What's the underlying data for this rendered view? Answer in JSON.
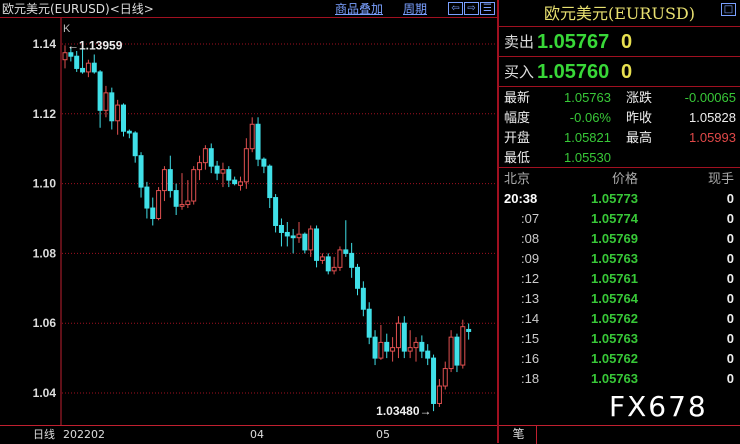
{
  "title": "欧元美元(EURUSD)<日线>",
  "toolbar": {
    "overlay": "商品叠加",
    "period": "周期",
    "icons": [
      "arrow-left-icon",
      "arrow-right-icon",
      "layout-icon"
    ]
  },
  "chart": {
    "label": "K",
    "yticks": [
      "1.14",
      "1.12",
      "1.10",
      "1.08",
      "1.06",
      "1.04"
    ],
    "yvalues": [
      1.14,
      1.12,
      1.1,
      1.08,
      1.06,
      1.04
    ],
    "high_label": "1.13959",
    "low_label": "1.03480",
    "xlabels": [
      {
        "text": "日线"
      },
      {
        "text": "202202"
      },
      {
        "text": "04"
      },
      {
        "text": "05"
      }
    ],
    "colors": {
      "up": "#e05050",
      "down": "#40e0e8",
      "grid": "#a01020"
    },
    "candles": [
      [
        1.1355,
        1.13959,
        1.133,
        1.1375
      ],
      [
        1.1375,
        1.139,
        1.135,
        1.1365
      ],
      [
        1.1365,
        1.138,
        1.132,
        1.133
      ],
      [
        1.133,
        1.1385,
        1.1315,
        1.132
      ],
      [
        1.132,
        1.1355,
        1.1305,
        1.1345
      ],
      [
        1.1345,
        1.137,
        1.1315,
        1.132
      ],
      [
        1.132,
        1.1325,
        1.116,
        1.121
      ],
      [
        1.121,
        1.128,
        1.119,
        1.126
      ],
      [
        1.126,
        1.1275,
        1.1155,
        1.118
      ],
      [
        1.118,
        1.124,
        1.114,
        1.1225
      ],
      [
        1.1225,
        1.123,
        1.1135,
        1.115
      ],
      [
        1.115,
        1.1155,
        1.113,
        1.1145
      ],
      [
        1.1145,
        1.115,
        1.106,
        1.108
      ],
      [
        1.108,
        1.109,
        1.096,
        1.099
      ],
      [
        1.099,
        1.1005,
        1.09,
        1.093
      ],
      [
        1.093,
        1.096,
        1.088,
        1.09
      ],
      [
        1.09,
        1.099,
        1.0895,
        1.098
      ],
      [
        1.098,
        1.105,
        1.095,
        1.104
      ],
      [
        1.104,
        1.108,
        1.096,
        1.098
      ],
      [
        1.098,
        1.1,
        1.091,
        1.0935
      ],
      [
        1.0935,
        1.103,
        1.0925,
        1.094
      ],
      [
        1.094,
        1.101,
        1.093,
        1.095
      ],
      [
        1.095,
        1.105,
        1.094,
        1.104
      ],
      [
        1.104,
        1.108,
        1.101,
        1.106
      ],
      [
        1.106,
        1.111,
        1.104,
        1.11
      ],
      [
        1.11,
        1.1115,
        1.103,
        1.105
      ],
      [
        1.105,
        1.1065,
        1.101,
        1.103
      ],
      [
        1.103,
        1.106,
        1.099,
        1.104
      ],
      [
        1.104,
        1.105,
        1.099,
        1.101
      ],
      [
        1.101,
        1.102,
        1.0995,
        1.1
      ],
      [
        1.0995,
        1.102,
        1.098,
        1.1005
      ],
      [
        1.1005,
        1.113,
        1.0985,
        1.11
      ],
      [
        1.11,
        1.119,
        1.109,
        1.117
      ],
      [
        1.117,
        1.119,
        1.105,
        1.107
      ],
      [
        1.107,
        1.1075,
        1.103,
        1.105
      ],
      [
        1.105,
        1.1055,
        1.093,
        1.096
      ],
      [
        1.096,
        1.097,
        1.086,
        1.088
      ],
      [
        1.088,
        1.09,
        1.082,
        1.086
      ],
      [
        1.086,
        1.089,
        1.082,
        1.085
      ],
      [
        1.085,
        1.087,
        1.08,
        1.0845
      ],
      [
        1.0845,
        1.089,
        1.083,
        1.0855
      ],
      [
        1.0855,
        1.086,
        1.08,
        1.081
      ],
      [
        1.081,
        1.088,
        1.079,
        1.087
      ],
      [
        1.087,
        1.088,
        1.076,
        1.078
      ],
      [
        1.078,
        1.08,
        1.077,
        1.079
      ],
      [
        1.079,
        1.08,
        1.074,
        1.075
      ],
      [
        1.075,
        1.079,
        1.074,
        1.076
      ],
      [
        1.076,
        1.082,
        1.075,
        1.081
      ],
      [
        1.081,
        1.0895,
        1.079,
        1.08
      ],
      [
        1.08,
        1.083,
        1.073,
        1.076
      ],
      [
        1.076,
        1.077,
        1.068,
        1.07
      ],
      [
        1.07,
        1.072,
        1.062,
        1.064
      ],
      [
        1.064,
        1.066,
        1.054,
        1.056
      ],
      [
        1.056,
        1.058,
        1.048,
        1.05
      ],
      [
        1.05,
        1.0595,
        1.0495,
        1.0545
      ],
      [
        1.0545,
        1.057,
        1.05,
        1.052
      ],
      [
        1.052,
        1.056,
        1.049,
        1.053
      ],
      [
        1.053,
        1.062,
        1.05,
        1.06
      ],
      [
        1.06,
        1.062,
        1.05,
        1.052
      ],
      [
        1.052,
        1.058,
        1.05,
        1.053
      ],
      [
        1.053,
        1.056,
        1.049,
        1.0545
      ],
      [
        1.0545,
        1.0565,
        1.05,
        1.052
      ],
      [
        1.052,
        1.054,
        1.048,
        1.05
      ],
      [
        1.05,
        1.051,
        1.0348,
        1.037
      ],
      [
        1.037,
        1.044,
        1.036,
        1.042
      ],
      [
        1.042,
        1.049,
        1.041,
        1.047
      ],
      [
        1.047,
        1.058,
        1.046,
        1.056
      ],
      [
        1.056,
        1.057,
        1.046,
        1.048
      ],
      [
        1.048,
        1.061,
        1.047,
        1.059
      ],
      [
        1.05821,
        1.05993,
        1.0553,
        1.05763
      ]
    ]
  },
  "panel": {
    "title": "欧元美元(EURUSD)",
    "sell": {
      "label": "卖出",
      "price": "1.05767",
      "qty": "0"
    },
    "buy": {
      "label": "买入",
      "price": "1.05760",
      "qty": "0"
    },
    "stats": [
      {
        "label": "最新",
        "value": "1.05763",
        "color": "green"
      },
      {
        "label": "涨跌",
        "value": "-0.00065",
        "color": "green"
      },
      {
        "label": "幅度",
        "value": "-0.06%",
        "color": "green"
      },
      {
        "label": "昨收",
        "value": "1.05828",
        "color": "white"
      },
      {
        "label": "开盘",
        "value": "1.05821",
        "color": "green"
      },
      {
        "label": "最高",
        "value": "1.05993",
        "color": "red"
      },
      {
        "label": "最低",
        "value": "1.05530",
        "color": "green"
      }
    ],
    "ticks_header": {
      "time": "北京",
      "price": "价格",
      "qty": "现手"
    },
    "ticks": [
      {
        "time": "20:38",
        "price": "1.05773",
        "qty": "0"
      },
      {
        "time": ":07",
        "price": "1.05774",
        "qty": "0"
      },
      {
        "time": ":08",
        "price": "1.05769",
        "qty": "0"
      },
      {
        "time": ":09",
        "price": "1.05763",
        "qty": "0"
      },
      {
        "time": ":12",
        "price": "1.05761",
        "qty": "0"
      },
      {
        "time": ":13",
        "price": "1.05764",
        "qty": "0"
      },
      {
        "time": ":14",
        "price": "1.05762",
        "qty": "0"
      },
      {
        "time": ":15",
        "price": "1.05763",
        "qty": "0"
      },
      {
        "time": ":16",
        "price": "1.05762",
        "qty": "0"
      },
      {
        "time": ":18",
        "price": "1.05763",
        "qty": "0"
      }
    ],
    "tab": "笔"
  },
  "watermark": "FX678"
}
